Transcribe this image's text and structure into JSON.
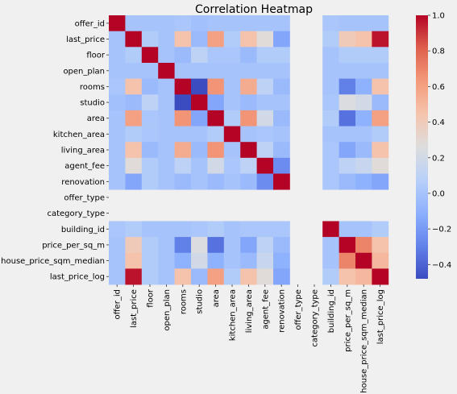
{
  "chart_data": {
    "type": "heatmap",
    "title": "Correlation Heatmap",
    "labels": [
      "offer_id",
      "last_price",
      "floor",
      "open_plan",
      "rooms",
      "studio",
      "area",
      "kitchen_area",
      "living_area",
      "agent_fee",
      "renovation",
      "offer_type",
      "category_type",
      "building_id",
      "price_per_sq_m",
      "house_price_sqm_median",
      "last_price_log"
    ],
    "colorbar": {
      "colormap": "coolwarm",
      "range": [
        -0.48,
        1.0
      ],
      "ticks": [
        1.0,
        0.8,
        0.6,
        0.4,
        0.2,
        0.0,
        -0.2,
        -0.4
      ],
      "tick_labels": [
        "1.0",
        "0.8",
        "0.6",
        "0.4",
        "0.2",
        "0.0",
        "−0.2",
        "−0.4"
      ]
    },
    "matrix": [
      [
        1.0,
        0.0,
        0.0,
        0.0,
        0.02,
        -0.02,
        0.0,
        0.0,
        0.0,
        0.0,
        0.0,
        null,
        null,
        0.02,
        0.0,
        0.0,
        0.0
      ],
      [
        0.0,
        1.0,
        0.05,
        0.0,
        0.45,
        -0.05,
        0.6,
        0.05,
        0.45,
        0.28,
        -0.15,
        null,
        null,
        0.05,
        0.4,
        0.45,
        0.97
      ],
      [
        0.0,
        0.05,
        1.0,
        0.0,
        -0.05,
        0.1,
        0.02,
        0.02,
        -0.05,
        0.05,
        0.05,
        null,
        null,
        0.0,
        0.05,
        0.05,
        0.05
      ],
      [
        0.0,
        0.0,
        0.0,
        1.0,
        0.0,
        0.0,
        0.0,
        0.0,
        0.0,
        0.0,
        0.0,
        null,
        null,
        0.0,
        0.0,
        0.0,
        0.0
      ],
      [
        0.02,
        0.45,
        -0.05,
        0.0,
        1.0,
        -0.48,
        0.65,
        0.0,
        0.55,
        0.1,
        -0.05,
        null,
        null,
        0.0,
        -0.3,
        -0.1,
        0.45
      ],
      [
        -0.02,
        -0.05,
        0.1,
        0.0,
        -0.48,
        1.0,
        -0.15,
        0.0,
        -0.05,
        0.0,
        0.0,
        null,
        null,
        0.02,
        0.25,
        0.2,
        -0.05
      ],
      [
        0.0,
        0.6,
        0.02,
        0.0,
        0.65,
        -0.15,
        1.0,
        0.05,
        0.65,
        0.2,
        -0.05,
        null,
        null,
        0.05,
        -0.35,
        -0.1,
        0.6
      ],
      [
        0.0,
        0.05,
        0.02,
        0.0,
        0.0,
        0.0,
        0.05,
        1.0,
        0.0,
        0.02,
        0.0,
        null,
        null,
        0.0,
        0.0,
        0.0,
        0.05
      ],
      [
        0.0,
        0.45,
        -0.05,
        0.0,
        0.55,
        -0.05,
        0.65,
        0.0,
        1.0,
        0.1,
        -0.05,
        null,
        null,
        0.02,
        -0.15,
        -0.05,
        0.45
      ],
      [
        0.0,
        0.28,
        0.05,
        0.0,
        0.1,
        0.0,
        0.2,
        0.02,
        0.1,
        1.0,
        -0.25,
        null,
        null,
        0.02,
        0.1,
        0.15,
        0.28
      ],
      [
        0.0,
        -0.15,
        0.05,
        0.0,
        -0.05,
        0.0,
        -0.05,
        0.0,
        -0.05,
        -0.25,
        1.0,
        null,
        null,
        0.02,
        -0.05,
        -0.1,
        -0.15
      ],
      [
        null,
        null,
        null,
        null,
        null,
        null,
        null,
        null,
        null,
        null,
        null,
        null,
        null,
        null,
        null,
        null,
        null
      ],
      [
        null,
        null,
        null,
        null,
        null,
        null,
        null,
        null,
        null,
        null,
        null,
        null,
        null,
        null,
        null,
        null,
        null
      ],
      [
        0.02,
        0.05,
        0.0,
        0.0,
        0.0,
        0.02,
        0.05,
        0.0,
        0.02,
        0.02,
        0.02,
        null,
        null,
        1.0,
        0.0,
        0.0,
        0.05
      ],
      [
        0.0,
        0.4,
        0.05,
        0.0,
        -0.3,
        0.25,
        -0.35,
        0.0,
        -0.15,
        0.1,
        -0.05,
        null,
        null,
        0.0,
        1.0,
        0.7,
        0.45
      ],
      [
        0.0,
        0.45,
        0.05,
        0.0,
        -0.1,
        0.2,
        -0.1,
        0.0,
        -0.05,
        0.15,
        -0.1,
        null,
        null,
        0.0,
        0.7,
        1.0,
        0.5
      ],
      [
        0.0,
        0.97,
        0.05,
        0.0,
        0.45,
        -0.05,
        0.6,
        0.05,
        0.45,
        0.28,
        -0.15,
        null,
        null,
        0.05,
        0.45,
        0.5,
        1.0
      ]
    ]
  }
}
